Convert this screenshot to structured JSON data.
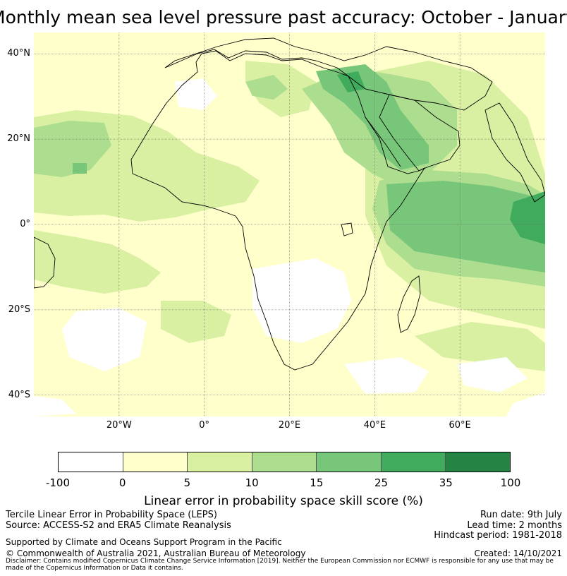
{
  "title": "Monthly mean sea level pressure past accuracy: October - January",
  "map": {
    "lat_ticks": [
      "40°N",
      "20°N",
      "0°",
      "20°S",
      "40°S"
    ],
    "lon_ticks": [
      "20°W",
      "0°",
      "20°E",
      "40°E",
      "60°E"
    ],
    "lat_values": [
      40,
      20,
      0,
      -20,
      -40
    ],
    "lon_values": [
      -20,
      0,
      20,
      40,
      60
    ],
    "lon_range": [
      -40,
      80
    ],
    "lat_range": [
      -45,
      45
    ],
    "gridlines": true
  },
  "legend": {
    "ticks": [
      "-100",
      "0",
      "5",
      "10",
      "15",
      "25",
      "35",
      "100"
    ],
    "colors": [
      "#ffffff",
      "#ffffcc",
      "#d9f0a3",
      "#addd8e",
      "#78c679",
      "#41ab5d",
      "#238443"
    ],
    "label": "Linear error in probability space skill score (%)"
  },
  "info": {
    "left": [
      "Tercile Linear Error in Probability Space (LEPS)",
      "Source: ACCESS-S2 and ERA5 Climate Reanalysis"
    ],
    "right": [
      "Run date: 9th July",
      "Lead time: 2 months",
      "Hindcast period: 1981-2018"
    ],
    "support": "Supported by Climate and Oceans Support Program in the Pacific",
    "copyright": "© Commonwealth of Australia 2021, Australian Bureau of Meteorology",
    "created": "Created: 14/10/2021",
    "disclaimer": "Disclaimer: Contains modified Copernicus Climate Change Service Information [2019]. Neither the European Commission nor ECMWF is responsible for any use that may be made of the Copernicus Information or Data it contains."
  }
}
